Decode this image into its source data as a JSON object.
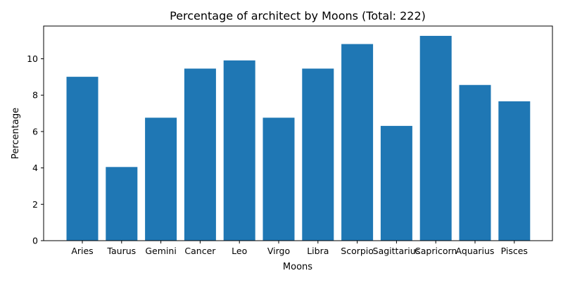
{
  "chart_data": {
    "type": "bar",
    "title": "Percentage of architect by Moons (Total: 222)",
    "xlabel": "Moons",
    "ylabel": "Percentage",
    "categories": [
      "Aries",
      "Taurus",
      "Gemini",
      "Cancer",
      "Leo",
      "Virgo",
      "Libra",
      "Scorpio",
      "Sagittarius",
      "Capricorn",
      "Aquarius",
      "Pisces"
    ],
    "values": [
      9.01,
      4.05,
      6.76,
      9.46,
      9.91,
      6.76,
      9.46,
      10.81,
      6.31,
      11.26,
      8.56,
      7.66
    ],
    "ylim": [
      0,
      11.8
    ],
    "yticks": [
      0,
      2,
      4,
      6,
      8,
      10
    ],
    "grid": false,
    "legend": "none",
    "bar_color": "#1f77b4"
  }
}
